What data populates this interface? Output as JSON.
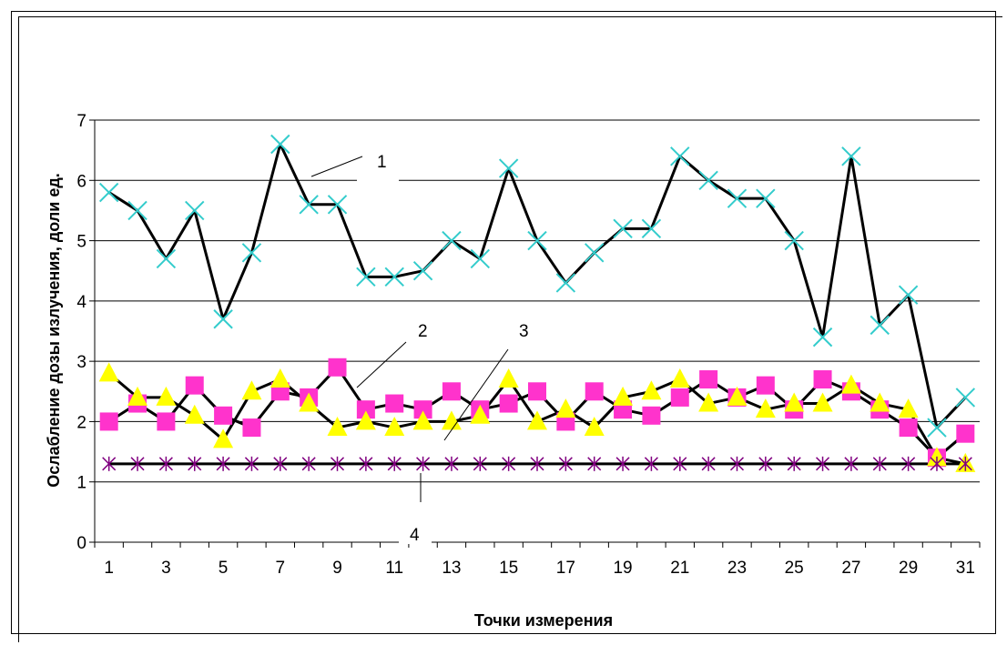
{
  "chart_data": {
    "type": "line",
    "xlabel": "Точки измерения",
    "ylabel": "Ослабление дозы излучения, доли ед.",
    "ylim": [
      0,
      7
    ],
    "yticks": [
      "0",
      "1",
      "2",
      "3",
      "4",
      "5",
      "6",
      "7"
    ],
    "x": [
      1,
      2,
      3,
      4,
      5,
      6,
      7,
      8,
      9,
      10,
      11,
      12,
      13,
      14,
      15,
      16,
      17,
      18,
      19,
      20,
      21,
      22,
      23,
      24,
      25,
      26,
      27,
      28,
      29,
      30,
      31
    ],
    "xtick_labels": [
      "1",
      "3",
      "5",
      "7",
      "9",
      "11",
      "13",
      "15",
      "17",
      "19",
      "21",
      "23",
      "25",
      "27",
      "29",
      "31"
    ],
    "grid": "horizontal",
    "series": [
      {
        "name": "1",
        "marker": "x",
        "color": "#33CCCC",
        "values": [
          5.8,
          5.5,
          4.7,
          5.5,
          3.7,
          4.8,
          6.6,
          5.6,
          5.6,
          4.4,
          4.4,
          4.5,
          5.0,
          4.7,
          6.2,
          5.0,
          4.3,
          4.8,
          5.2,
          5.2,
          6.4,
          6.0,
          5.7,
          5.7,
          5.0,
          3.4,
          6.4,
          3.6,
          4.1,
          1.9,
          2.4
        ]
      },
      {
        "name": "2",
        "marker": "square",
        "color": "#FF33CC",
        "values": [
          2.0,
          2.3,
          2.0,
          2.6,
          2.1,
          1.9,
          2.5,
          2.4,
          2.9,
          2.2,
          2.3,
          2.2,
          2.5,
          2.2,
          2.3,
          2.5,
          2.0,
          2.5,
          2.2,
          2.1,
          2.4,
          2.7,
          2.4,
          2.6,
          2.2,
          2.7,
          2.5,
          2.2,
          1.9,
          1.4,
          1.8
        ]
      },
      {
        "name": "3",
        "marker": "triangle",
        "color": "#FFFF00",
        "values": [
          2.8,
          2.4,
          2.4,
          2.1,
          1.7,
          2.5,
          2.7,
          2.3,
          1.9,
          2.0,
          1.9,
          2.0,
          2.0,
          2.1,
          2.7,
          2.0,
          2.2,
          1.9,
          2.4,
          2.5,
          2.7,
          2.3,
          2.4,
          2.2,
          2.3,
          2.3,
          2.6,
          2.3,
          2.2,
          1.4,
          1.3
        ]
      },
      {
        "name": "4",
        "marker": "asterisk",
        "color": "#800080",
        "values": [
          1.3,
          1.3,
          1.3,
          1.3,
          1.3,
          1.3,
          1.3,
          1.3,
          1.3,
          1.3,
          1.3,
          1.3,
          1.3,
          1.3,
          1.3,
          1.3,
          1.3,
          1.3,
          1.3,
          1.3,
          1.3,
          1.3,
          1.3,
          1.3,
          1.3,
          1.3,
          1.3,
          1.3,
          1.3,
          1.3,
          1.3
        ]
      }
    ],
    "callouts": [
      "1",
      "2",
      "3",
      "4"
    ]
  }
}
